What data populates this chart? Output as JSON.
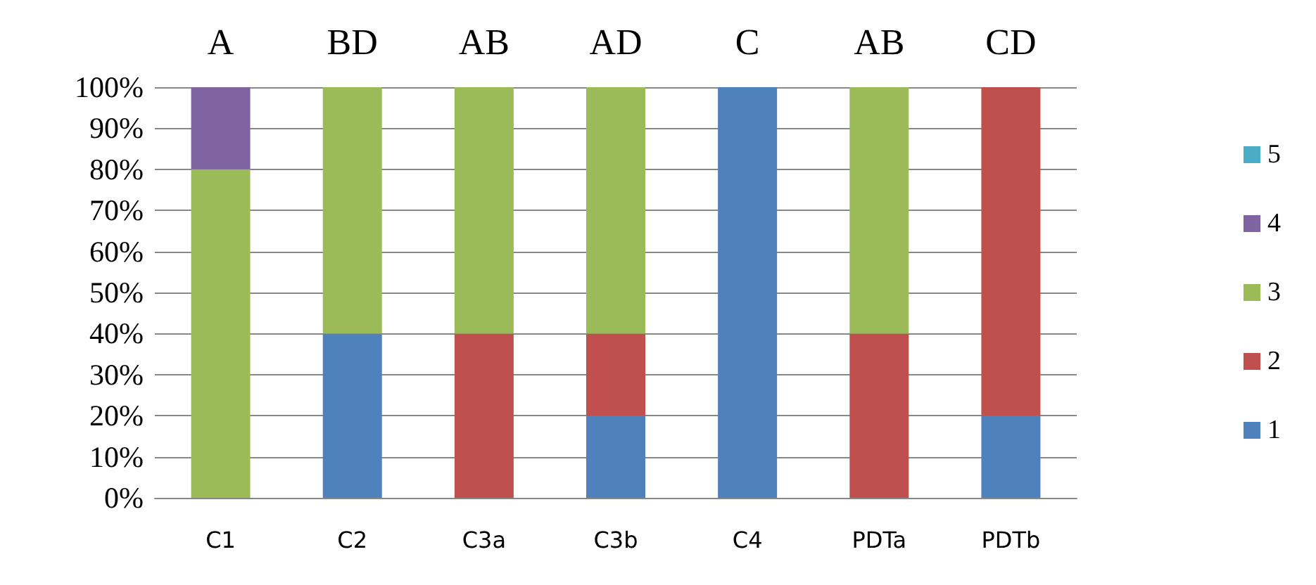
{
  "chart_data": {
    "type": "bar",
    "stacked": true,
    "categories": [
      "C1",
      "C2",
      "C3a",
      "C3b",
      "C4",
      "PDTa",
      "PDTb"
    ],
    "series": [
      {
        "name": "1",
        "color": "#4f81bd",
        "values": [
          0,
          40,
          0,
          20,
          100,
          0,
          20
        ]
      },
      {
        "name": "2",
        "color": "#c0504d",
        "values": [
          0,
          0,
          40,
          20,
          0,
          40,
          80
        ]
      },
      {
        "name": "3",
        "color": "#9bbb59",
        "values": [
          80,
          60,
          60,
          60,
          0,
          60,
          0
        ]
      },
      {
        "name": "4",
        "color": "#8064a2",
        "values": [
          20,
          0,
          0,
          0,
          0,
          0,
          0
        ]
      },
      {
        "name": "5",
        "color": "#4bacc6",
        "values": [
          0,
          0,
          0,
          0,
          0,
          0,
          0
        ]
      }
    ],
    "ylim": [
      0,
      100
    ],
    "yticks": [
      {
        "value": 0,
        "label": "0%"
      },
      {
        "value": 10,
        "label": "10%"
      },
      {
        "value": 20,
        "label": "20%"
      },
      {
        "value": 30,
        "label": "30%"
      },
      {
        "value": 40,
        "label": "40%"
      },
      {
        "value": 50,
        "label": "50%"
      },
      {
        "value": 60,
        "label": "60%"
      },
      {
        "value": 70,
        "label": "70%"
      },
      {
        "value": 80,
        "label": "80%"
      },
      {
        "value": 90,
        "label": "90%"
      },
      {
        "value": 100,
        "label": "100%"
      }
    ],
    "grid": "y",
    "legend": "right",
    "annotations": [
      "A",
      "BD",
      "AB",
      "AD",
      "C",
      "AB",
      "CD"
    ]
  }
}
